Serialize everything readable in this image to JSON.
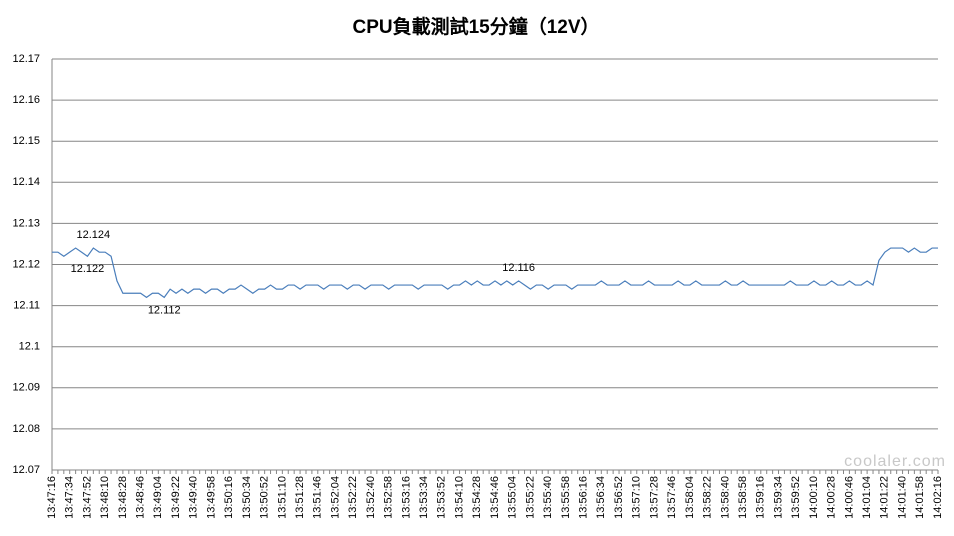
{
  "chart_data": {
    "type": "line",
    "title": "CPU負載測試15分鐘（12V）",
    "watermark": "coolaler.com",
    "categories": [
      "13:47:16",
      null,
      null,
      "13:47:34",
      null,
      null,
      "13:47:52",
      null,
      null,
      "13:48:10",
      null,
      null,
      "13:48:28",
      null,
      null,
      "13:48:46",
      null,
      null,
      "13:49:04",
      null,
      null,
      "13:49:22",
      null,
      null,
      "13:49:40",
      null,
      null,
      "13:49:58",
      null,
      null,
      "13:50:16",
      null,
      null,
      "13:50:34",
      null,
      null,
      "13:50:52",
      null,
      null,
      "13:51:10",
      null,
      null,
      "13:51:28",
      null,
      null,
      "13:51:46",
      null,
      null,
      "13:52:04",
      null,
      null,
      "13:52:22",
      null,
      null,
      "13:52:40",
      null,
      null,
      "13:52:58",
      null,
      null,
      "13:53:16",
      null,
      null,
      "13:53:34",
      null,
      null,
      "13:53:52",
      null,
      null,
      "13:54:10",
      null,
      null,
      "13:54:28",
      null,
      null,
      "13:54:46",
      null,
      null,
      "13:55:04",
      null,
      null,
      "13:55:22",
      null,
      null,
      "13:55:40",
      null,
      null,
      "13:55:58",
      null,
      null,
      "13:56:16",
      null,
      null,
      "13:56:34",
      null,
      null,
      "13:56:52",
      null,
      null,
      "13:57:10",
      null,
      null,
      "13:57:28",
      null,
      null,
      "13:57:46",
      null,
      null,
      "13:58:04",
      null,
      null,
      "13:58:22",
      null,
      null,
      "13:58:40",
      null,
      null,
      "13:58:58",
      null,
      null,
      "13:59:16",
      null,
      null,
      "13:59:34",
      null,
      null,
      "13:59:52",
      null,
      null,
      "14:00:10",
      null,
      null,
      "14:00:28",
      null,
      null,
      "14:00:46",
      null,
      null,
      "14:01:04",
      null,
      null,
      "14:01:22",
      null,
      null,
      "14:01:40",
      null,
      null,
      "14:01:58",
      null,
      null,
      "14:02:16"
    ],
    "series": [
      {
        "color": "#4a7ebb",
        "values": [
          12.123,
          12.123,
          12.122,
          12.123,
          12.124,
          12.123,
          12.122,
          12.124,
          12.123,
          12.123,
          12.122,
          12.116,
          12.113,
          12.113,
          12.113,
          12.113,
          12.112,
          12.113,
          12.113,
          12.112,
          12.114,
          12.113,
          12.114,
          12.113,
          12.114,
          12.114,
          12.113,
          12.114,
          12.114,
          12.113,
          12.114,
          12.114,
          12.115,
          12.114,
          12.113,
          12.114,
          12.114,
          12.115,
          12.114,
          12.114,
          12.115,
          12.115,
          12.114,
          12.115,
          12.115,
          12.115,
          12.114,
          12.115,
          12.115,
          12.115,
          12.114,
          12.115,
          12.115,
          12.114,
          12.115,
          12.115,
          12.115,
          12.114,
          12.115,
          12.115,
          12.115,
          12.115,
          12.114,
          12.115,
          12.115,
          12.115,
          12.115,
          12.114,
          12.115,
          12.115,
          12.116,
          12.115,
          12.116,
          12.115,
          12.115,
          12.116,
          12.115,
          12.116,
          12.115,
          12.116,
          12.115,
          12.114,
          12.115,
          12.115,
          12.114,
          12.115,
          12.115,
          12.115,
          12.114,
          12.115,
          12.115,
          12.115,
          12.115,
          12.116,
          12.115,
          12.115,
          12.115,
          12.116,
          12.115,
          12.115,
          12.115,
          12.116,
          12.115,
          12.115,
          12.115,
          12.115,
          12.116,
          12.115,
          12.115,
          12.116,
          12.115,
          12.115,
          12.115,
          12.115,
          12.116,
          12.115,
          12.115,
          12.116,
          12.115,
          12.115,
          12.115,
          12.115,
          12.115,
          12.115,
          12.115,
          12.116,
          12.115,
          12.115,
          12.115,
          12.116,
          12.115,
          12.115,
          12.116,
          12.115,
          12.115,
          12.116,
          12.115,
          12.115,
          12.116,
          12.115,
          12.121,
          12.123,
          12.124,
          12.124,
          12.124,
          12.123,
          12.124,
          12.123,
          12.123,
          12.124,
          12.124
        ],
        "value_labels": [
          null,
          null,
          null,
          null,
          null,
          null,
          "12.122",
          "12.124",
          null,
          null,
          null,
          null,
          null,
          null,
          null,
          null,
          null,
          null,
          null,
          "12.112",
          null,
          null,
          null,
          null,
          null,
          null,
          null,
          null,
          null,
          null,
          null,
          null,
          null,
          null,
          null,
          null,
          null,
          null,
          null,
          null,
          null,
          null,
          null,
          null,
          null,
          null,
          null,
          null,
          null,
          null,
          null,
          null,
          null,
          null,
          null,
          null,
          null,
          null,
          null,
          null,
          null,
          null,
          null,
          null,
          null,
          null,
          null,
          null,
          null,
          null,
          null,
          null,
          null,
          null,
          null,
          null,
          null,
          null,
          null,
          "12.116",
          null,
          null,
          null,
          null,
          null,
          null,
          null,
          null,
          null,
          null,
          null,
          null,
          null,
          null,
          null,
          null,
          null,
          null,
          null,
          null,
          null,
          null,
          null,
          null,
          null,
          null,
          null,
          null,
          null,
          null,
          null,
          null,
          null,
          null,
          null,
          null,
          null,
          null,
          null,
          null,
          null,
          null,
          null,
          null,
          null,
          null,
          null,
          null,
          null,
          null,
          null,
          null,
          null,
          null,
          null,
          null,
          null,
          null,
          null,
          null,
          null,
          null,
          null,
          null,
          null,
          null,
          null,
          null,
          null,
          null,
          null
        ]
      }
    ],
    "ylim": [
      12.07,
      12.17
    ],
    "yticks": [
      12.07,
      12.08,
      12.09,
      12.1,
      12.11,
      12.12,
      12.13,
      12.14,
      12.15,
      12.16,
      12.17
    ],
    "grid": true
  }
}
